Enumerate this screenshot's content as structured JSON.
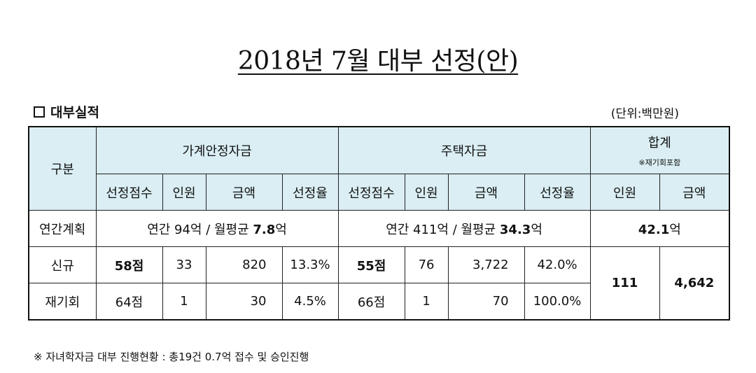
{
  "title": "2018년 7월 대부 선정(안)",
  "section": {
    "label": "대부실적",
    "checkbox_icon": "checkbox-icon"
  },
  "unit": "(단위:백만원)",
  "header": {
    "gubun": "구분",
    "group1": "가계안정자금",
    "group2": "주택자금",
    "total": "합계",
    "total_note": "※재기회포함",
    "sub": {
      "score": "선정점수",
      "people": "인원",
      "amount": "금액",
      "rate": "선정율"
    }
  },
  "rows": {
    "annual": {
      "label": "연간계획",
      "g1_text": "연간  94억 / 월평균 ",
      "g1_bold": "7.8",
      "g1_suffix": "억",
      "g2_text": "연간 411억 / 월평균 ",
      "g2_bold": "34.3",
      "g2_suffix": "억",
      "total_bold": "42.1",
      "total_suffix": "억"
    },
    "new": {
      "label": "신규",
      "g1_score": "58점",
      "g1_people": "33",
      "g1_amount": "820",
      "g1_rate": "13.3%",
      "g2_score": "55점",
      "g2_people": "76",
      "g2_amount": "3,722",
      "g2_rate": "42.0%"
    },
    "restart": {
      "label": "재기회",
      "g1_score": "64점",
      "g1_people": "1",
      "g1_amount": "30",
      "g1_rate": "4.5%",
      "g2_score": "66점",
      "g2_people": "1",
      "g2_amount": "70",
      "g2_rate": "100.0%"
    },
    "total": {
      "people": "111",
      "amount": "4,642"
    }
  },
  "footnote": "※ 자녀학자금 대부 진행현황 : 총19건 0.7억 접수 및 승인진행"
}
